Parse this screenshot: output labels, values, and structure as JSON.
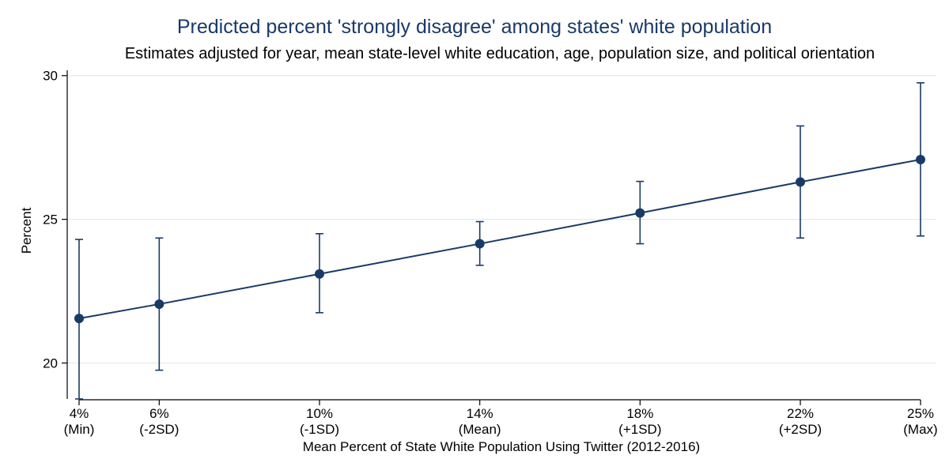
{
  "chart_data": {
    "type": "line",
    "title": "Predicted percent 'strongly disagree' among states' white population",
    "subtitle": "Estimates adjusted for year, mean state-level white education, age, population size, and political orientation",
    "xlabel": "Mean Percent of State White Population Using Twitter (2012-2016)",
    "ylabel": "Percent",
    "x": [
      4,
      6,
      10,
      14,
      18,
      22,
      25
    ],
    "x_tick_labels": [
      [
        "4%",
        "(Min)"
      ],
      [
        "6%",
        "(-2SD)"
      ],
      [
        "10%",
        "(-1SD)"
      ],
      [
        "14%",
        "(Mean)"
      ],
      [
        "18%",
        "(+1SD)"
      ],
      [
        "22%",
        "(+2SD)"
      ],
      [
        "25%",
        "(Max)"
      ]
    ],
    "y_ticks": [
      20,
      25,
      30
    ],
    "ylim": [
      18.75,
      30.35
    ],
    "xlim": [
      4,
      25
    ],
    "grid": true,
    "series": [
      {
        "values": [
          21.55,
          22.05,
          23.1,
          24.15,
          25.22,
          26.3,
          27.08
        ],
        "ci_low": [
          18.75,
          19.75,
          21.75,
          23.4,
          24.15,
          24.35,
          24.42
        ],
        "ci_high": [
          24.3,
          24.35,
          24.5,
          24.92,
          26.32,
          28.25,
          29.75
        ]
      }
    ],
    "colors": {
      "series": "#1a3a66",
      "grid": "#e3ece9",
      "axis": "#000000"
    }
  }
}
